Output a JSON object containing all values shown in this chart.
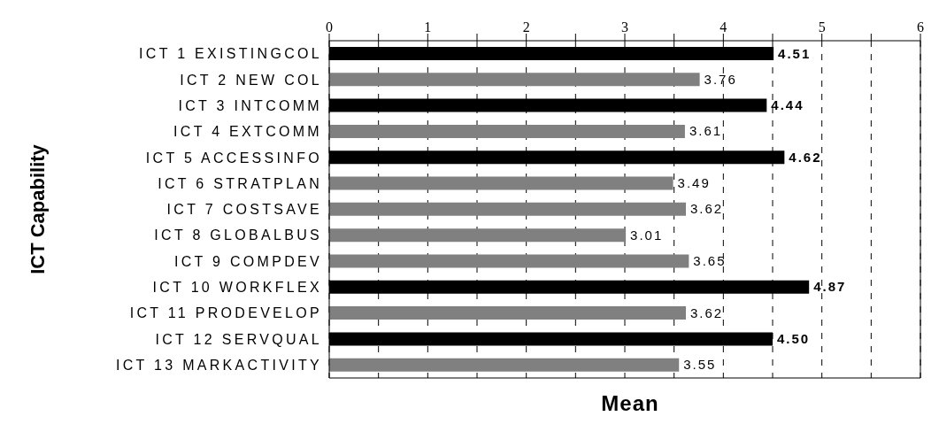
{
  "chart_data": {
    "type": "bar",
    "orientation": "horizontal",
    "xlabel": "Mean",
    "ylabel": "ICT Capability",
    "categories": [
      "ICT 1 EXISTINGCOL",
      "ICT 2 NEW COL",
      "ICT 3 INTCOMM",
      "ICT 4 EXTCOMM",
      "ICT 5 ACCESSINFO",
      "ICT 6 STRATPLAN",
      "ICT 7 COSTSAVE",
      "ICT 8 GLOBALBUS",
      "ICT 9 COMPDEV",
      "ICT 10 WORKFLEX",
      "ICT 11 PRODEVELOP",
      "ICT 12 SERVQUAL",
      "ICT 13 MARKACTIVITY"
    ],
    "values": [
      4.51,
      3.76,
      4.44,
      3.61,
      4.62,
      3.49,
      3.62,
      3.01,
      3.65,
      4.87,
      3.62,
      4.5,
      3.55
    ],
    "value_labels": [
      "4.51",
      "3.76",
      "4.44",
      "3.61",
      "4.62",
      "3.49",
      "3.62",
      "3.01",
      "3.65",
      "4.87",
      "3.62",
      "4.50",
      "3.55"
    ],
    "colors": [
      "#000000",
      "#808080",
      "#000000",
      "#808080",
      "#000000",
      "#808080",
      "#808080",
      "#808080",
      "#808080",
      "#000000",
      "#808080",
      "#000000",
      "#808080"
    ],
    "xlim": [
      0,
      6
    ],
    "xticks": [
      0,
      {
        "value": 0.5,
        "label": null
      },
      1,
      {
        "value": 1.5,
        "label": null
      },
      2,
      {
        "value": 2.5,
        "label": null
      },
      3,
      {
        "value": 3.5,
        "label": null
      },
      4,
      {
        "value": 4.5,
        "label": null
      },
      5,
      {
        "value": 5.5,
        "label": null
      },
      6
    ],
    "grid": "x"
  }
}
